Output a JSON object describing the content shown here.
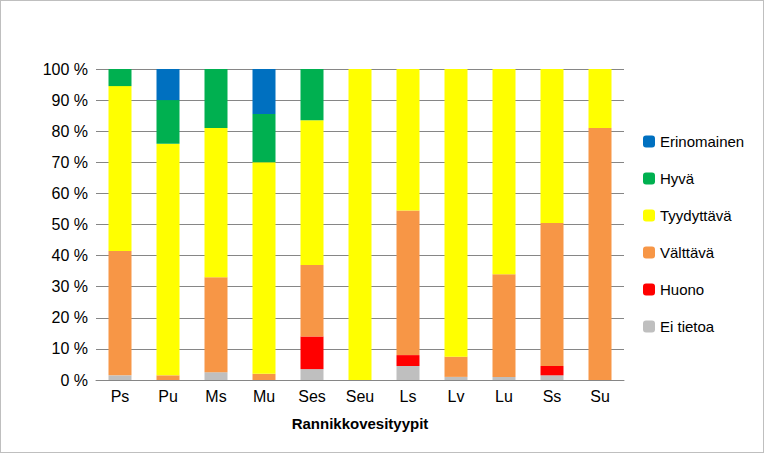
{
  "chart_data": {
    "type": "bar",
    "stacked": true,
    "grid": true,
    "legend": "right",
    "x_label": "Rannikkovesityypit",
    "categories": [
      "Ps",
      "Pu",
      "Ms",
      "Mu",
      "Ses",
      "Seu",
      "Ls",
      "Lv",
      "Lu",
      "Ss",
      "Su"
    ],
    "ylim": [
      0,
      100
    ],
    "yticks": [
      {
        "value": 0,
        "label": "0 %"
      },
      {
        "value": 10,
        "label": "10 %"
      },
      {
        "value": 20,
        "label": "20 %"
      },
      {
        "value": 30,
        "label": "30 %"
      },
      {
        "value": 40,
        "label": "40 %"
      },
      {
        "value": 50,
        "label": "50 %"
      },
      {
        "value": 60,
        "label": "60 %"
      },
      {
        "value": 70,
        "label": "70 %"
      },
      {
        "value": 80,
        "label": "80 %"
      },
      {
        "value": 90,
        "label": "90 %"
      },
      {
        "value": 100,
        "label": "100 %"
      }
    ],
    "series": [
      {
        "name": "Ei tietoa",
        "color": "#bfbfbf",
        "values": [
          1.5,
          0,
          2.5,
          0,
          3.5,
          0,
          4.5,
          1,
          1,
          1.5,
          0
        ]
      },
      {
        "name": "Huono",
        "color": "#ff0000",
        "values": [
          0,
          0,
          0,
          0,
          10.5,
          0,
          3.5,
          0,
          0,
          3,
          0
        ]
      },
      {
        "name": "Välttävä",
        "color": "#f79646",
        "values": [
          40,
          1.5,
          30.5,
          2,
          23,
          0,
          46.5,
          6.5,
          33,
          46,
          81
        ]
      },
      {
        "name": "Tyydyttävä",
        "color": "#ffff00",
        "values": [
          53,
          74.5,
          48,
          68,
          46.5,
          100,
          45.5,
          92.5,
          66,
          49.5,
          19
        ]
      },
      {
        "name": "Hyvä",
        "color": "#00b050",
        "values": [
          5.5,
          14,
          19,
          15.5,
          16.5,
          0,
          0,
          0,
          0,
          0,
          0
        ]
      },
      {
        "name": "Erinomainen",
        "color": "#0070c0",
        "values": [
          0,
          10,
          0,
          14.5,
          0,
          0,
          0,
          0,
          0,
          0,
          0
        ]
      }
    ]
  }
}
